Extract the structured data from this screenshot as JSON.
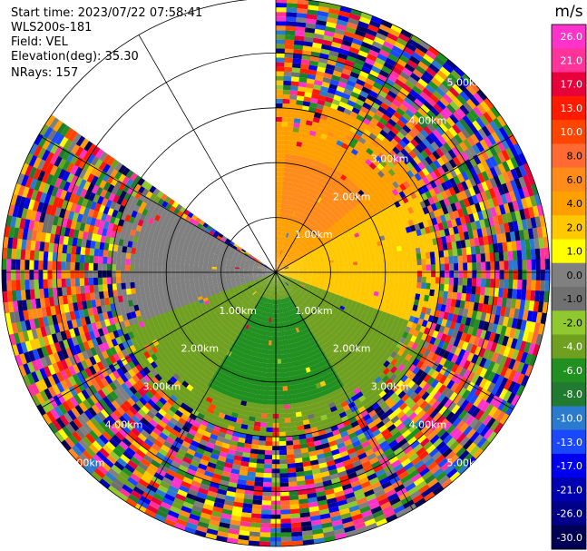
{
  "info": {
    "start_time": "Start time: 2023/07/22 07:58:41",
    "instrument": "WLS200s-181",
    "field": "Field: VEL",
    "elevation": "Elevation(deg): 35.30",
    "nrays": "NRays: 157"
  },
  "chart_data": {
    "type": "heatmap",
    "projection": "polar-ppi",
    "title": "",
    "range_ring_labels": [
      "1.00km",
      "2.00km",
      "3.00km",
      "4.00km",
      "5.00km"
    ],
    "range_rings_km": [
      1,
      2,
      3,
      4,
      5
    ],
    "max_range_km": 5.0,
    "spoke_angles_deg": [
      0,
      30,
      60,
      90,
      120,
      150,
      180,
      210,
      240,
      270,
      300,
      330
    ],
    "no_data_azimuth_range_deg": [
      305,
      360
    ],
    "colorbar": {
      "unit": "m/s",
      "tick_labels": [
        "26.0",
        "21.0",
        "17.0",
        "13.0",
        "10.0",
        "8.0",
        "6.0",
        "4.0",
        "2.0",
        "1.0",
        "0.0",
        "-1.0",
        "-2.0",
        "-4.0",
        "-6.0",
        "-8.0",
        "-10.0",
        "-13.0",
        "-17.0",
        "-21.0",
        "-26.0",
        "-30.0"
      ],
      "colors": [
        "#ff33cc",
        "#ff3399",
        "#e8003a",
        "#ff1a00",
        "#ff4500",
        "#ff6a33",
        "#ff8c1a",
        "#ff9f00",
        "#ffc800",
        "#ffff00",
        "#808080",
        "#707070",
        "#90c830",
        "#70a020",
        "#209020",
        "#207a30",
        "#2a7acd",
        "#1a48ff",
        "#0000ee",
        "#0000b0",
        "#000088",
        "#000055"
      ]
    },
    "velocity_field": {
      "description_regions": [
        {
          "azimuth_deg": [
            0,
            60
          ],
          "range_km": [
            0,
            3.2
          ],
          "value": 4.0
        },
        {
          "azimuth_deg": [
            5,
            50
          ],
          "range_km": [
            1.0,
            2.2
          ],
          "value": 6.0
        },
        {
          "azimuth_deg": [
            60,
            110
          ],
          "range_km": [
            0,
            3.0
          ],
          "value": 2.0
        },
        {
          "azimuth_deg": [
            110,
            250
          ],
          "range_km": [
            0,
            3.0
          ],
          "value": -4.0
        },
        {
          "azimuth_deg": [
            150,
            210
          ],
          "range_km": [
            0.5,
            2.4
          ],
          "value": -6.0
        },
        {
          "azimuth_deg": [
            250,
            300
          ],
          "range_km": [
            0,
            3.0
          ],
          "value": 0.0
        }
      ]
    }
  }
}
